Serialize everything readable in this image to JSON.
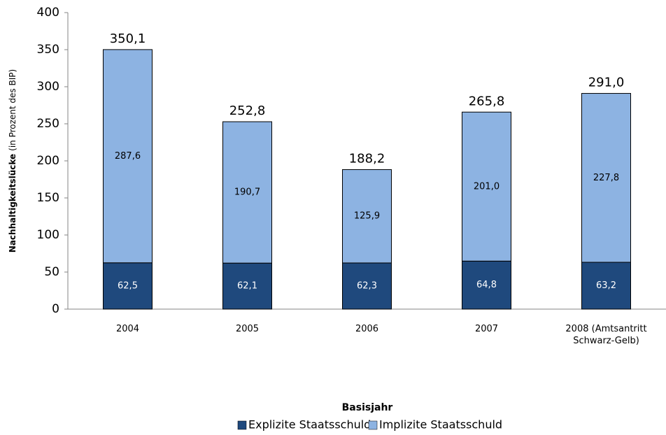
{
  "chart_data": {
    "type": "stacked_bar",
    "y_label": "Nachhaltigkeitslücke",
    "y_label_note": "(in Prozent des BIP)",
    "x_label": "Basisjahr",
    "categories": [
      "2004",
      "2005",
      "2006",
      "2007",
      "2008 (Amtsantritt Schwarz-Gelb)"
    ],
    "series": [
      {
        "name": "Explizite Staatsschuld",
        "color": "#1f497d",
        "label_color": "#ffffff",
        "values": [
          62.5,
          62.1,
          62.3,
          64.8,
          63.2
        ],
        "value_labels": [
          "62,5",
          "62,1",
          "62,3",
          "64,8",
          "63,2"
        ]
      },
      {
        "name": "Implizite Staatsschuld",
        "color": "#8db3e2",
        "label_color": "#000000",
        "values": [
          287.6,
          190.7,
          125.9,
          201.0,
          227.8
        ],
        "value_labels": [
          "287,6",
          "190,7",
          "125,9",
          "201,0",
          "227,8"
        ]
      }
    ],
    "totals": [
      350.1,
      252.8,
      188.2,
      265.8,
      291.0
    ],
    "total_labels": [
      "350,1",
      "252,8",
      "188,2",
      "265,8",
      "291,0"
    ],
    "ylim": [
      0,
      400
    ],
    "yticks": [
      0,
      50,
      100,
      150,
      200,
      250,
      300,
      350,
      400
    ],
    "grid": false,
    "legend": "bottom"
  }
}
